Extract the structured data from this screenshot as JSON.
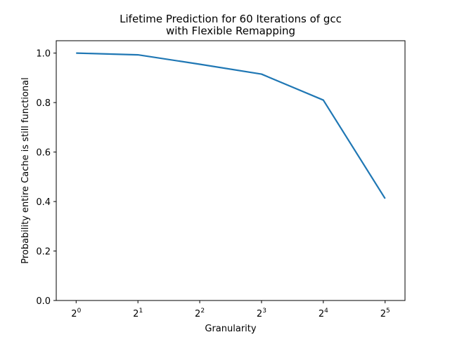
{
  "chart_data": {
    "type": "line",
    "title": [
      "Lifetime Prediction for 60 Iterations of gcc",
      "with Flexible Remapping"
    ],
    "xlabel": "Granularity",
    "ylabel": "Probability entire Cache is still functional",
    "x": [
      1,
      2,
      4,
      8,
      16,
      32
    ],
    "x_tick_labels": [
      {
        "base": "2",
        "exp": "0"
      },
      {
        "base": "2",
        "exp": "1"
      },
      {
        "base": "2",
        "exp": "2"
      },
      {
        "base": "2",
        "exp": "3"
      },
      {
        "base": "2",
        "exp": "4"
      },
      {
        "base": "2",
        "exp": "5"
      }
    ],
    "x_scale": "log2",
    "xlim": [
      0.8,
      40
    ],
    "y_ticks": [
      0.0,
      0.2,
      0.4,
      0.6,
      0.8,
      1.0
    ],
    "y_tick_labels": [
      "0.0",
      "0.2",
      "0.4",
      "0.6",
      "0.8",
      "1.0"
    ],
    "ylim": [
      0,
      1.05
    ],
    "grid": false,
    "series": [
      {
        "values": [
          1.0,
          0.993,
          0.955,
          0.915,
          0.81,
          0.412
        ],
        "color": "#1f77b4"
      }
    ]
  }
}
